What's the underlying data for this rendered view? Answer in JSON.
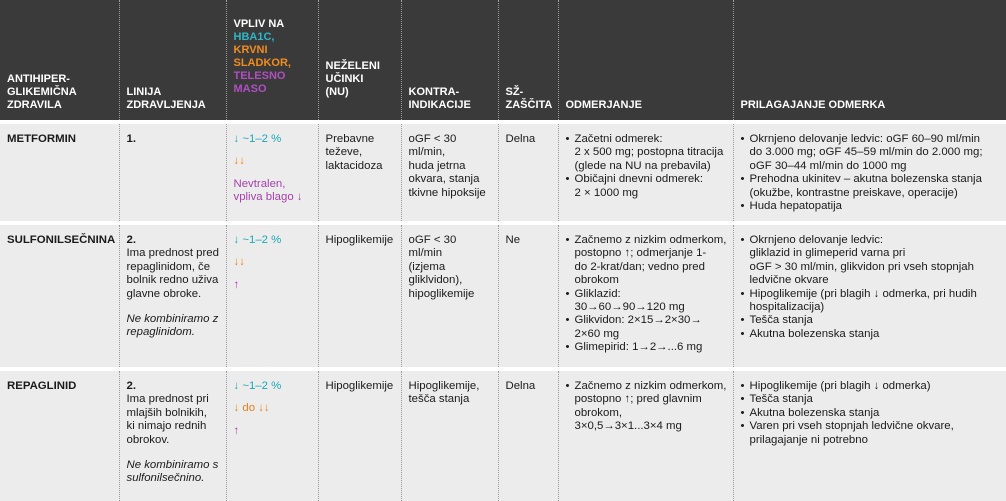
{
  "header": {
    "col1": "ANTIHIPER-\nGLIKEMIČNA\nZDRAVILA",
    "col2": "LINIJA\nZDRAVLJENJA",
    "col3_title": "VPLIV NA",
    "col3_hba1c": "HBA1C,",
    "col3_glucose": "KRVNI\nSLADKOR,",
    "col3_weight": "TELESNO\nMASO",
    "col4": "NEŽELENI\nUČINKI\n(NU)",
    "col5": "KONTRA-\nINDIKACIJE",
    "col6": "SŽ-\nZAŠČITA",
    "col7": "ODMERJANJE",
    "col8": "PRILAGAJANJE ODMERKA"
  },
  "rows": [
    {
      "drug": "METFORMIN",
      "line": "1.",
      "line_note": "",
      "line_italic": "",
      "effect_hba1c": "↓ ~1–2 %",
      "effect_glucose": "↓↓",
      "effect_weight": "Nevtralen,\nvpliva blago ↓",
      "side_effects": "Prebavne\nteževe,\nlaktacidoza",
      "contraindications": "oGF < 30 ml/min,\nhuda jetrna\nokvara, stanja\ntkivne hipoksije",
      "cv_protection": "Delna",
      "dosing": [
        "Začetni odmerek:\n2 x 500 mg; postopna titracija\n(glede na NU na prebavila)",
        "Običajni dnevni odmerek:\n2 × 1000 mg"
      ],
      "adjustment": [
        "Okrnjeno delovanje ledvic: oGF 60–90 ml/min\ndo 3.000 mg; oGF 45–59 ml/min do 2.000 mg;\noGF 30–44 ml/min do 1000 mg",
        "Prehodna ukinitev – akutna bolezenska stanja\n(okužbe, kontrastne preiskave, operacije)",
        "Huda hepatopatija"
      ]
    },
    {
      "drug": "SULFONILSEČNINA",
      "line": "2.",
      "line_note": "Ima prednost pred\nrepaglinidom, če\nbolnik redno uživa\nglavne obroke.",
      "line_italic": "Ne kombiniramo z\nrepaglinidom.",
      "effect_hba1c": "↓ ~1–2 %",
      "effect_glucose": "↓↓",
      "effect_weight": "↑",
      "side_effects": "Hipoglikemije",
      "contraindications": "oGF < 30 ml/min\n(izjema\ngliklvidon),\nhipoglikemije",
      "cv_protection": "Ne",
      "dosing": [
        "Začnemo z nizkim odmerkom,\npostopno ↑; odmerjanje 1-\ndo 2-krat/dan; vedno pred\nobrokom",
        "Gliklazid:\n30→60→90→120 mg",
        "Glikvidon: 2×15→2×30→\n2×60 mg",
        "Glimepirid: 1→2→...6 mg"
      ],
      "adjustment": [
        "Okrnjeno delovanje ledvic:\ngliklazid in glimeperid varna pri\noGF > 30 ml/min, glikvidon pri vseh stopnjah\nledvične okvare",
        "Hipoglikemije (pri blagih ↓ odmerka, pri hudih\nhospitalizacija)",
        "Tešča stanja",
        "Akutna bolezenska stanja"
      ]
    },
    {
      "drug": "REPAGLINID",
      "line": "2.",
      "line_note": "Ima prednost pri\nmlajših bolnikih,\nki nimajo rednih\nobrokov.",
      "line_italic": "Ne kombiniramo s\nsulfonilsečnino.",
      "effect_hba1c": "↓ ~1–2 %",
      "effect_glucose": "↓ do ↓↓",
      "effect_weight": "↑",
      "side_effects": "Hipoglikemije",
      "contraindications": "Hipoglikemije,\ntešča stanja",
      "cv_protection": "Delna",
      "dosing": [
        "Začnemo z nizkim odmerkom,\npostopno ↑; pred glavnim\nobrokom,\n3×0,5→3×1...3×4 mg"
      ],
      "adjustment": [
        "Hipoglikemije (pri blagih ↓ odmerka)",
        "Tešča stanja",
        "Akutna bolezenska stanja",
        "Varen pri vseh stopnjah ledvične okvare,\nprilagajanje ni potrebno"
      ]
    }
  ],
  "colors": {
    "header_bg": "#3a3a3b",
    "row_bg": "#ececec",
    "hba1c": "#1aa8b8",
    "glucose": "#f07d12",
    "weight": "#a63fae"
  }
}
